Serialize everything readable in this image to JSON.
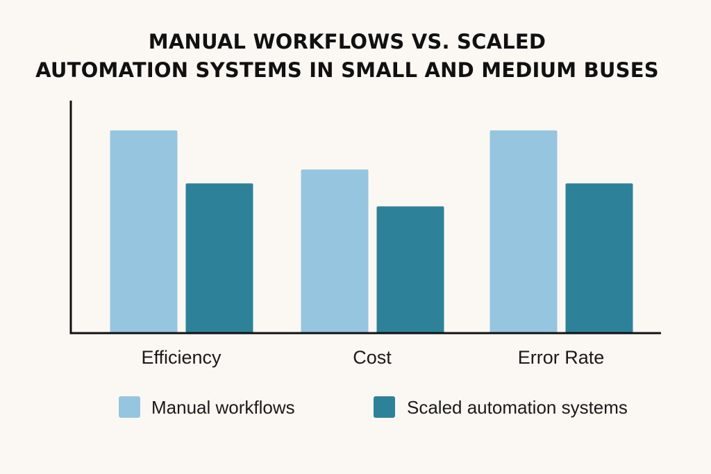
{
  "chart_data": {
    "type": "bar",
    "title_lines": [
      "MANUAL WORKFLOWS VS. SCALED",
      "AUTOMATION SYSTEMS IN SMALL AND MEDIUM BUSES"
    ],
    "categories": [
      "Efficiency",
      "Cost",
      "Error Rate"
    ],
    "series": [
      {
        "name": "Manual workflows",
        "values": [
          88,
          71,
          88
        ],
        "color": "#96c5e0"
      },
      {
        "name": "Scaled automation systems",
        "values": [
          65,
          55,
          65
        ],
        "color": "#2d8299"
      }
    ],
    "ylim": [
      0,
      100
    ],
    "grid": false,
    "legend_position": "bottom",
    "axis_color": "#111111",
    "background": "#fbf8f3"
  }
}
